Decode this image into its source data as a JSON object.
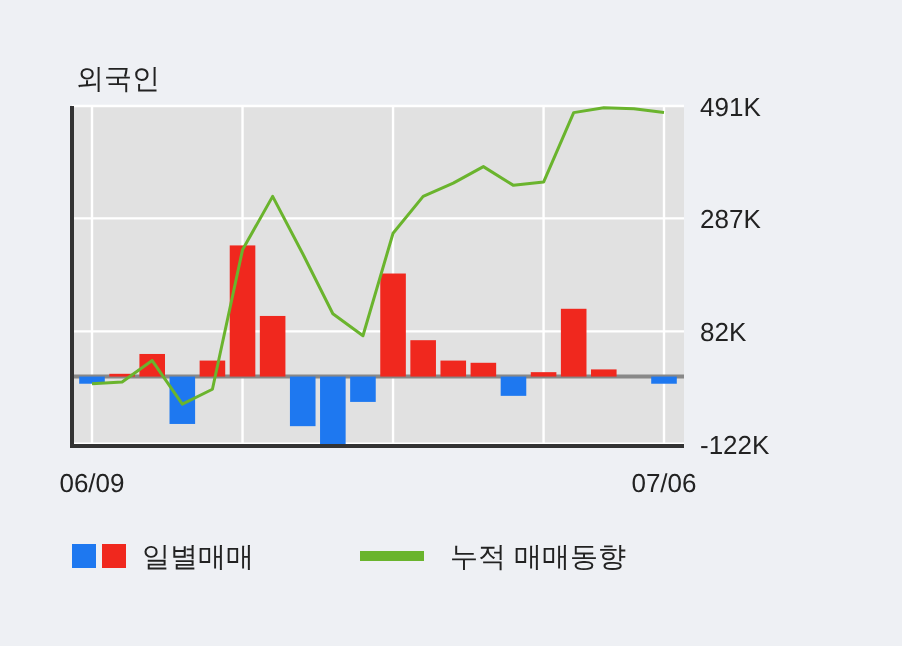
{
  "chart_data": {
    "type": "bar",
    "title": "외국인",
    "categories": [
      "06/09",
      null,
      null,
      null,
      null,
      null,
      null,
      null,
      null,
      null,
      null,
      null,
      null,
      null,
      null,
      null,
      null,
      null,
      null,
      "07/06"
    ],
    "series": [
      {
        "name": "일별매매",
        "colors": [
          "#1e78f0",
          "#f0281e",
          "#f0281e",
          "#1e78f0",
          "#f0281e",
          "#f0281e",
          "#f0281e",
          "#1e78f0",
          "#1e78f0",
          "#1e78f0",
          "#f0281e",
          "#f0281e",
          "#f0281e",
          "#f0281e",
          "#1e78f0",
          "#f0281e",
          "#f0281e",
          "#f0281e",
          "#f0281e",
          "#1e78f0"
        ],
        "values": [
          -13,
          5,
          41,
          -86,
          29,
          238,
          110,
          -90,
          -123,
          -46,
          187,
          66,
          29,
          25,
          -35,
          8,
          123,
          13,
          0,
          -13
        ]
      },
      {
        "name": "누적 매매동향",
        "type": "line",
        "color": "#6ab42d",
        "values": [
          -13,
          -10,
          29,
          -50,
          -23,
          230,
          327,
          223,
          114,
          74,
          260,
          327,
          351,
          381,
          347,
          353,
          479,
          488,
          486,
          479
        ]
      }
    ],
    "ylim": [
      -126,
      491
    ],
    "yticks": [
      {
        "value": 491,
        "label": "491K"
      },
      {
        "value": 287,
        "label": "287K"
      },
      {
        "value": 82,
        "label": "82K"
      },
      {
        "value": -122,
        "label": "-122K"
      }
    ],
    "grid": true,
    "legend": "bottom",
    "marker": "none"
  }
}
